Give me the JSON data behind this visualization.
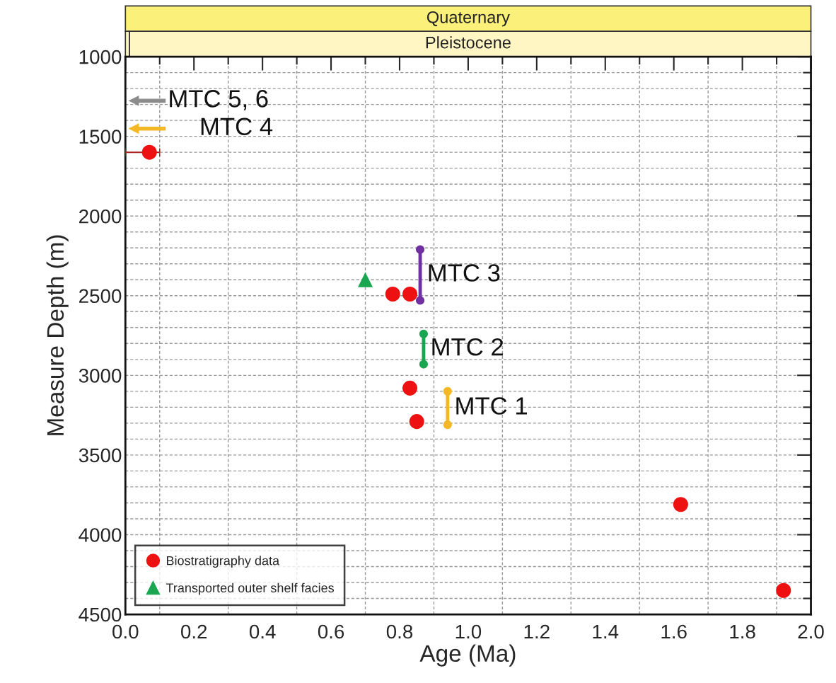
{
  "chart_data": {
    "type": "scatter",
    "xlabel": "Age (Ma)",
    "ylabel": "Measure Depth (m)",
    "xlim": [
      0,
      2.0
    ],
    "ylim": [
      4500,
      1000
    ],
    "xticks": [
      {
        "value": 0,
        "label": "0.0"
      },
      {
        "value": 0.2,
        "label": "0.2"
      },
      {
        "value": 0.4,
        "label": "0.4"
      },
      {
        "value": 0.6,
        "label": "0.6"
      },
      {
        "value": 0.8,
        "label": "0.8"
      },
      {
        "value": 1.0,
        "label": "1.0"
      },
      {
        "value": 1.2,
        "label": "1.2"
      },
      {
        "value": 1.4,
        "label": "1.4"
      },
      {
        "value": 1.6,
        "label": "1.6"
      },
      {
        "value": 1.8,
        "label": "1.8"
      },
      {
        "value": 2.0,
        "label": "2.0"
      }
    ],
    "yticks": [
      1000,
      1500,
      2000,
      2500,
      3000,
      3500,
      4000,
      4500
    ],
    "grid": true,
    "legend": "bottom left",
    "annotations": [
      "Quaternary",
      "Pleistocene",
      "MTC 5, 6",
      "MTC 4"
    ],
    "series": [
      {
        "type": "scatter",
        "name": "Biostratigraphy data",
        "color": "#ee1111",
        "marker": "circle",
        "x": [
          0.07,
          0.78,
          0.83,
          0.83,
          0.85,
          1.62,
          1.92
        ],
        "values": [
          1600,
          2490,
          2490,
          3080,
          3290,
          3810,
          4350
        ],
        "xerrors": [
          [
            0,
            0.1
          ],
          null,
          null,
          null,
          null,
          null,
          null
        ]
      },
      {
        "type": "scatter",
        "name": "Transported outer shelf facies",
        "color": "#1aa650",
        "marker": "triangle",
        "x": [
          0.7
        ],
        "values": [
          2400
        ]
      },
      {
        "type": "line",
        "name": "MTC 3",
        "color": "#7030a0",
        "marker": "circle",
        "x": [
          0.86,
          0.86
        ],
        "values": [
          2210,
          2530
        ]
      },
      {
        "type": "line",
        "name": "MTC 2",
        "color": "#1aa650",
        "marker": "circle",
        "x": [
          0.87,
          0.87
        ],
        "values": [
          2740,
          2930
        ]
      },
      {
        "type": "line",
        "name": "MTC 1",
        "color": "#f4b824",
        "marker": "circle",
        "x": [
          0.94,
          0.94
        ],
        "values": [
          3100,
          3310
        ]
      }
    ]
  }
}
